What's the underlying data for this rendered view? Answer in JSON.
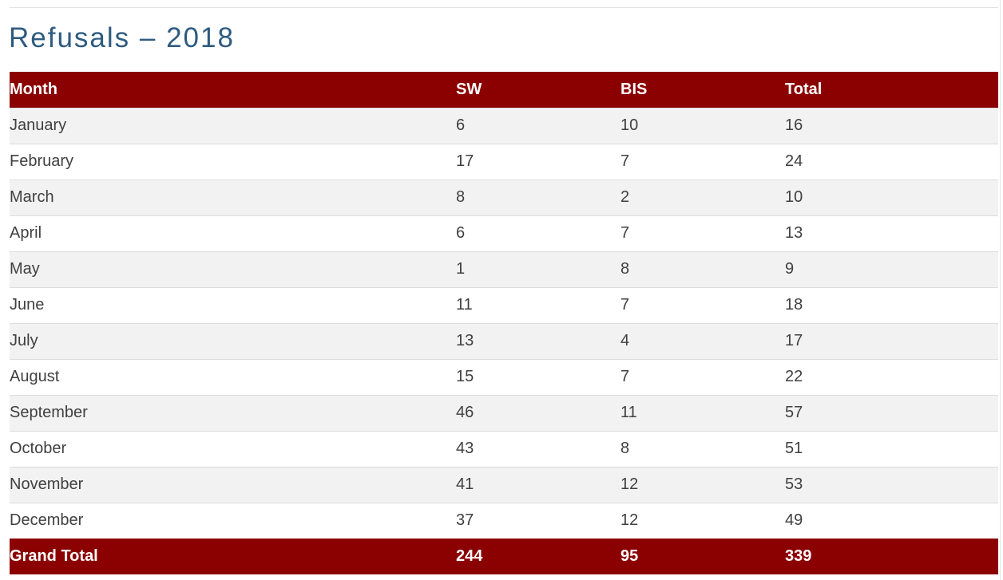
{
  "page": {
    "title": "Refusals – 2018"
  },
  "table": {
    "headers": {
      "month": "Month",
      "sw": "SW",
      "bis": "BIS",
      "total": "Total"
    },
    "rows": [
      {
        "month": "January",
        "sw": "6",
        "bis": "10",
        "total": "16"
      },
      {
        "month": "February",
        "sw": "17",
        "bis": "7",
        "total": "24"
      },
      {
        "month": "March",
        "sw": "8",
        "bis": "2",
        "total": "10"
      },
      {
        "month": "April",
        "sw": "6",
        "bis": "7",
        "total": "13"
      },
      {
        "month": "May",
        "sw": "1",
        "bis": "8",
        "total": "9"
      },
      {
        "month": "June",
        "sw": "11",
        "bis": "7",
        "total": "18"
      },
      {
        "month": "July",
        "sw": "13",
        "bis": "4",
        "total": "17"
      },
      {
        "month": "August",
        "sw": "15",
        "bis": "7",
        "total": "22"
      },
      {
        "month": "September",
        "sw": "46",
        "bis": "11",
        "total": "57"
      },
      {
        "month": "October",
        "sw": "43",
        "bis": "8",
        "total": "51"
      },
      {
        "month": "November",
        "sw": "41",
        "bis": "12",
        "total": "53"
      },
      {
        "month": "December",
        "sw": "37",
        "bis": "12",
        "total": "49"
      }
    ],
    "footer": {
      "label": "Grand Total",
      "sw": "244",
      "bis": "95",
      "total": "339"
    }
  },
  "colors": {
    "header_bg": "#8b0000",
    "title_color": "#2e5b80",
    "alt_row_bg": "#f2f2f2"
  }
}
